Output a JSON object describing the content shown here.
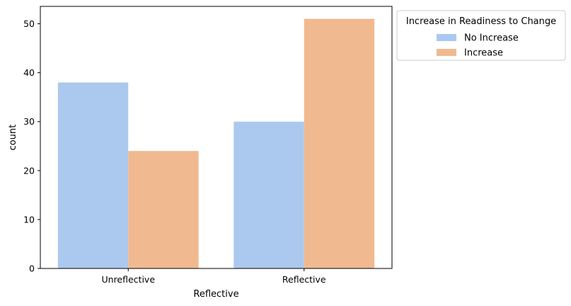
{
  "chart_data": {
    "type": "bar",
    "title": "",
    "xlabel": "Reflective",
    "ylabel": "count",
    "categories": [
      "Unreflective",
      "Reflective"
    ],
    "series": [
      {
        "name": "No Increase",
        "values": [
          38,
          30
        ],
        "color": "#abc9ee"
      },
      {
        "name": "Increase",
        "values": [
          24,
          51
        ],
        "color": "#f0b990"
      }
    ],
    "ylim": [
      0,
      53.55
    ],
    "yticks": [
      0,
      10,
      20,
      30,
      40,
      50
    ],
    "grid": false,
    "legend": {
      "title": "Increase in Readiness to Change",
      "placement": "outside-top-right"
    }
  }
}
